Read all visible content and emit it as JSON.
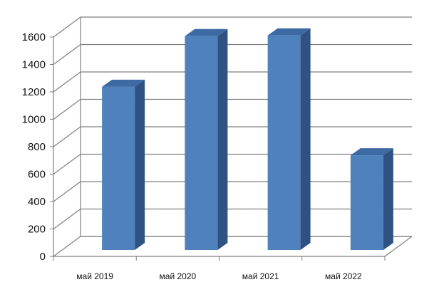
{
  "chart_data": {
    "type": "bar",
    "categories": [
      "май 2019",
      "май 2020",
      "май 2021",
      "май 2022"
    ],
    "values": [
      1190,
      1560,
      1565,
      690
    ],
    "ylim": [
      0,
      1600
    ],
    "yticks": [
      "0",
      "200",
      "400",
      "600",
      "800",
      "1000",
      "1200",
      "1400",
      "1600"
    ],
    "grid": true,
    "legend": "none",
    "three_d": true,
    "colors": {
      "bar_front": "#4F81BD",
      "bar_side": "#2F5283",
      "bar_top": "#3E6AA3",
      "grid": "#7F7F7F"
    }
  }
}
